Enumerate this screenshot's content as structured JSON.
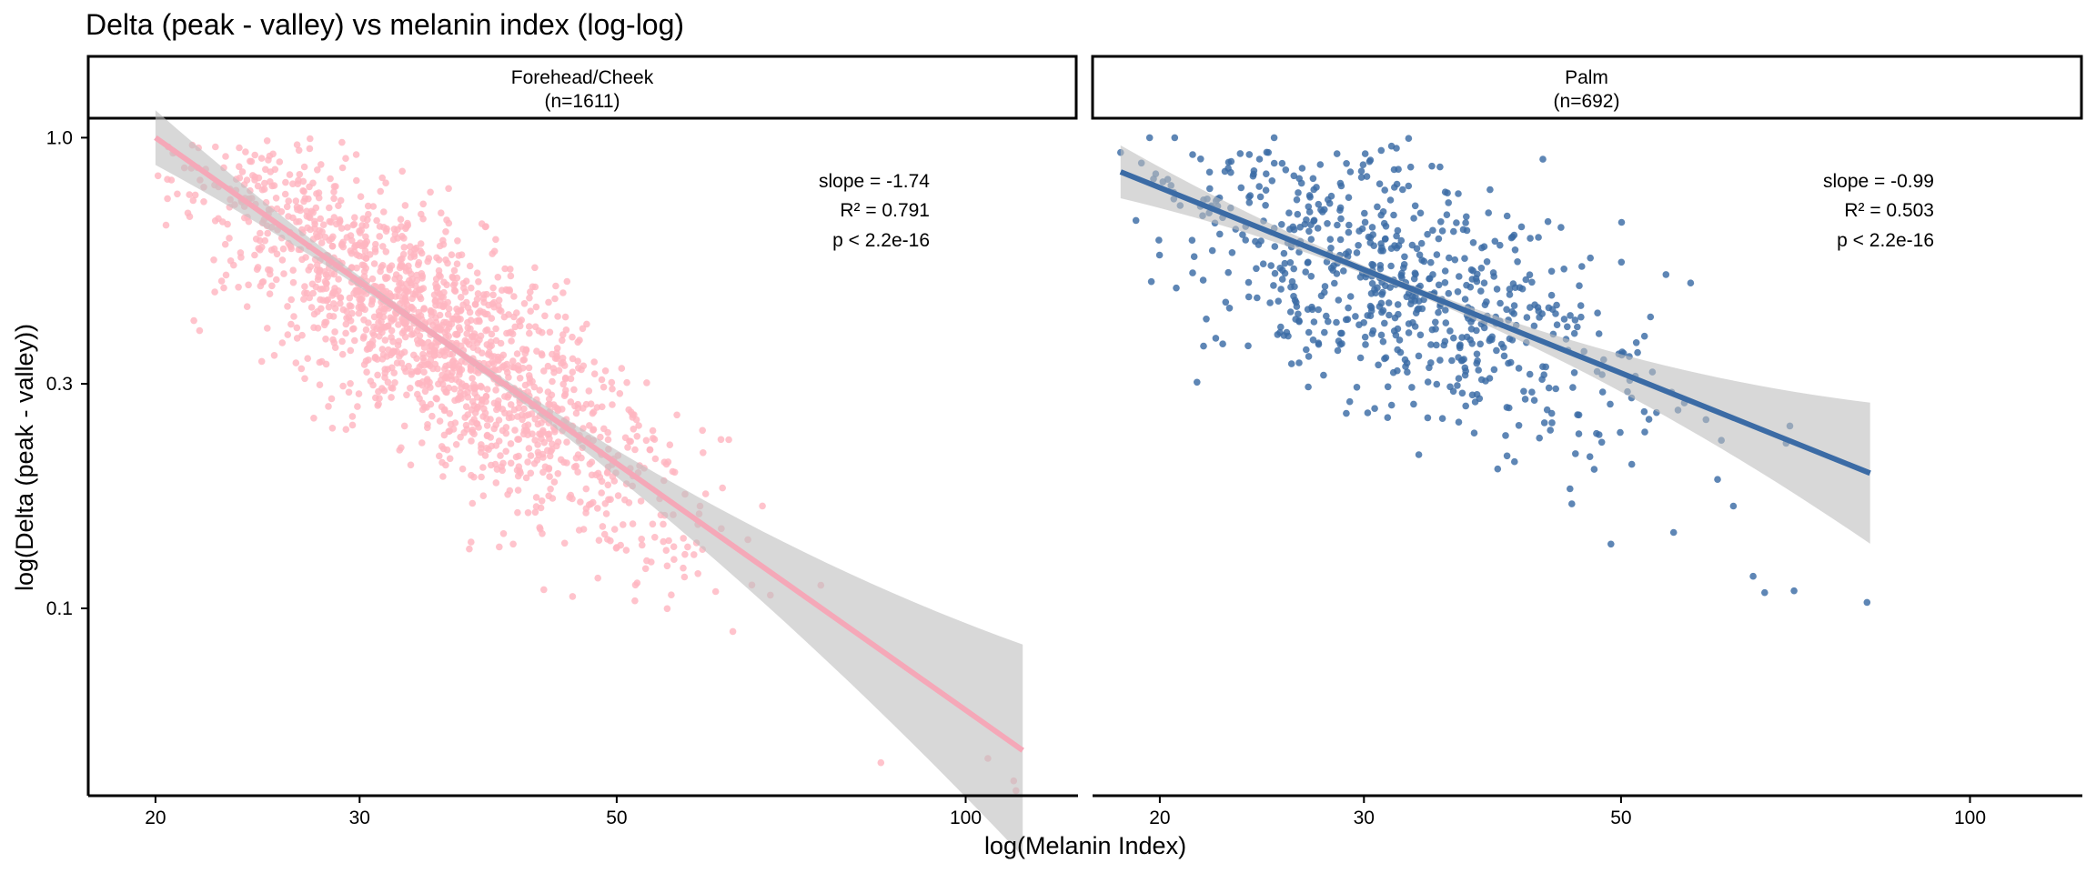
{
  "chart_data": {
    "type": "scatter",
    "title": "Delta (peak - valley) vs melanin index (log-log)",
    "xlabel": "log(Melanin Index)",
    "ylabel": "log(Delta (peak - valley))",
    "x_scale": "log10",
    "y_scale": "log10",
    "xlim": [
      17.5,
      125
    ],
    "ylim": [
      0.04,
      1.1
    ],
    "x_ticks": [
      20,
      30,
      50,
      100
    ],
    "y_ticks": [
      0.1,
      0.3,
      1.0
    ],
    "x_tick_labels": [
      "20",
      "30",
      "50",
      "100"
    ],
    "y_tick_labels": [
      "0.1",
      "0.3",
      "1.0"
    ],
    "grid": false,
    "legend": "none",
    "panels": [
      {
        "name": "forehead-cheek",
        "strip_title": "Forehead/Cheek",
        "strip_n": "(n=1611)",
        "color": "#FFB6C1",
        "line_color": "#F5A8B8",
        "band_color": "#BEBEBE",
        "n_points": 1611,
        "slope": -1.74,
        "intercept": 2.264,
        "x_range": [
          20,
          112
        ],
        "center": [
          35,
          0.39
        ],
        "resid_sd": 0.12,
        "stats": {
          "slope": "slope = -1.74",
          "r2": "R² = 0.791",
          "p": "p < 2.2e-16"
        },
        "points_sample": [
          {
            "x": 20.1,
            "y": 0.83
          },
          {
            "x": 22.5,
            "y": 0.47
          },
          {
            "x": 24.2,
            "y": 0.89
          },
          {
            "x": 26.6,
            "y": 0.94
          },
          {
            "x": 29.2,
            "y": 0.24
          },
          {
            "x": 35.8,
            "y": 0.78
          },
          {
            "x": 42.1,
            "y": 0.47
          },
          {
            "x": 45.8,
            "y": 0.106
          },
          {
            "x": 59.0,
            "y": 0.165
          },
          {
            "x": 75.0,
            "y": 0.112
          },
          {
            "x": 84.5,
            "y": 0.047
          },
          {
            "x": 104.5,
            "y": 0.048
          },
          {
            "x": 110.0,
            "y": 0.043
          },
          {
            "x": 110.5,
            "y": 0.041
          }
        ]
      },
      {
        "name": "palm",
        "strip_title": "Palm",
        "strip_n": "(n=692)",
        "color": "#3B6BA5",
        "line_color": "#3B6BA5",
        "band_color": "#BEBEBE",
        "n_points": 692,
        "slope": -0.99,
        "intercept": 1.182,
        "x_range": [
          18.5,
          82
        ],
        "center": [
          32,
          0.49
        ],
        "resid_sd": 0.13,
        "stats": {
          "slope": "slope = -0.99",
          "r2": "R² = 0.503",
          "p": "p < 2.2e-16"
        },
        "points_sample": [
          {
            "x": 18.5,
            "y": 0.93
          },
          {
            "x": 19.6,
            "y": 1.0
          },
          {
            "x": 20.6,
            "y": 1.0
          },
          {
            "x": 25.1,
            "y": 1.0
          },
          {
            "x": 32.0,
            "y": 0.95
          },
          {
            "x": 47.0,
            "y": 0.21
          },
          {
            "x": 49.0,
            "y": 0.137
          },
          {
            "x": 55.5,
            "y": 0.145
          },
          {
            "x": 62.5,
            "y": 0.165
          },
          {
            "x": 65.0,
            "y": 0.117
          },
          {
            "x": 66.5,
            "y": 0.108
          },
          {
            "x": 70.5,
            "y": 0.109
          },
          {
            "x": 81.5,
            "y": 0.103
          }
        ]
      }
    ]
  }
}
